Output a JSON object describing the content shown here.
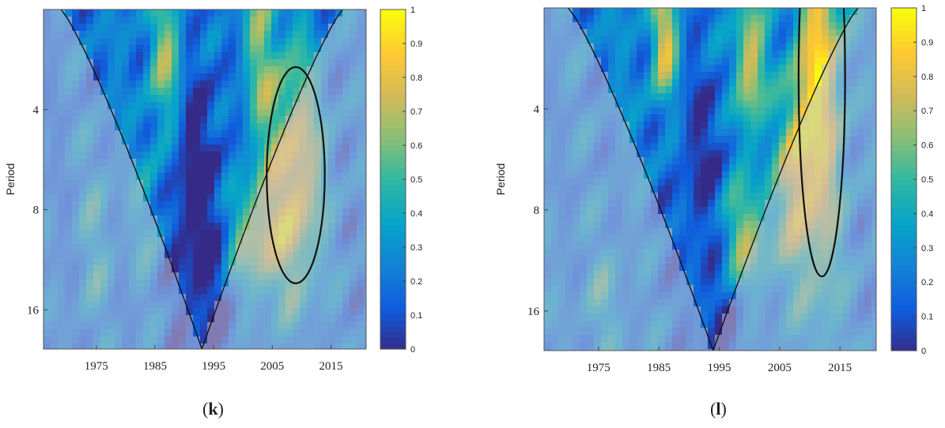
{
  "chart_data": [
    {
      "type": "heatmap",
      "panel_label": "k",
      "ylabel": "Period",
      "x_ticks": [
        1975,
        1985,
        1995,
        2005,
        2015
      ],
      "xlim": [
        1966,
        2021
      ],
      "y_ticks": [
        4,
        8,
        16
      ],
      "ylim": [
        2,
        21
      ],
      "y_scale": "log2",
      "y_reversed": true,
      "colorbar": {
        "ticks": [
          0,
          0.1,
          0.2,
          0.3,
          0.4,
          0.5,
          0.6,
          0.7,
          0.8,
          0.9,
          1
        ],
        "range": [
          0,
          1
        ]
      },
      "cone_apex_x": 1993,
      "cone_left_top_x": 1969,
      "cone_right_top_x": 2017,
      "colormap": [
        "#352a87",
        "#0f5cdd",
        "#1481d6",
        "#06a4ca",
        "#2eb7a4",
        "#87bf77",
        "#d1bb59",
        "#fec832",
        "#f9fb0e"
      ],
      "base_level": 0.22,
      "blobs": [
        {
          "x": 2009,
          "p": 6.3,
          "sx": 4.5,
          "sy": 0.12,
          "a": 0.65
        },
        {
          "x": 1987,
          "p": 2.8,
          "sx": 3,
          "sy": 0.08,
          "a": 0.45
        },
        {
          "x": 2003,
          "p": 2.6,
          "sx": 3,
          "sy": 0.1,
          "a": 0.35
        },
        {
          "x": 2002,
          "p": 9.8,
          "sx": 5,
          "sy": 0.06,
          "a": 0.5
        },
        {
          "x": 1984,
          "p": 8.5,
          "sx": 3,
          "sy": 0.08,
          "a": 0.2
        },
        {
          "x": 1991,
          "p": 5.5,
          "sx": 5,
          "sy": 0.12,
          "a": -0.2
        },
        {
          "x": 1994,
          "p": 13,
          "sx": 6,
          "sy": 0.12,
          "a": -0.2
        },
        {
          "x": 1975,
          "p": 10,
          "sx": 3,
          "sy": 0.1,
          "a": 0.2
        }
      ]
    },
    {
      "type": "heatmap",
      "panel_label": "l",
      "ylabel": "Period",
      "x_ticks": [
        1975,
        1985,
        1995,
        2005,
        2015
      ],
      "xlim": [
        1966,
        2021
      ],
      "y_ticks": [
        4,
        8,
        16
      ],
      "ylim": [
        2,
        21
      ],
      "y_scale": "log2",
      "y_reversed": true,
      "colorbar": {
        "ticks": [
          0,
          0.1,
          0.2,
          0.3,
          0.4,
          0.5,
          0.6,
          0.7,
          0.8,
          0.9,
          1
        ],
        "range": [
          0,
          1
        ]
      },
      "cone_apex_x": 1994,
      "cone_left_top_x": 1970,
      "cone_right_top_x": 2018,
      "colormap": [
        "#352a87",
        "#0f5cdd",
        "#1481d6",
        "#06a4ca",
        "#2eb7a4",
        "#87bf77",
        "#d1bb59",
        "#fec832",
        "#f9fb0e"
      ],
      "base_level": 0.25,
      "blobs": [
        {
          "x": 2012,
          "p": 3.2,
          "sx": 3.5,
          "sy": 0.22,
          "a": 0.62
        },
        {
          "x": 2008,
          "p": 6.0,
          "sx": 3,
          "sy": 0.1,
          "a": 0.55
        },
        {
          "x": 1986,
          "p": 2.5,
          "sx": 2.2,
          "sy": 0.06,
          "a": 0.55
        },
        {
          "x": 2000,
          "p": 3.0,
          "sx": 2.5,
          "sy": 0.07,
          "a": 0.55
        },
        {
          "x": 1999,
          "p": 9.7,
          "sx": 5,
          "sy": 0.06,
          "a": 0.5
        },
        {
          "x": 1992,
          "p": 6.0,
          "sx": 5,
          "sy": 0.12,
          "a": -0.2
        },
        {
          "x": 1996,
          "p": 15,
          "sx": 5,
          "sy": 0.12,
          "a": -0.2
        },
        {
          "x": 1976,
          "p": 15,
          "sx": 3,
          "sy": 0.06,
          "a": 0.2
        }
      ]
    }
  ]
}
